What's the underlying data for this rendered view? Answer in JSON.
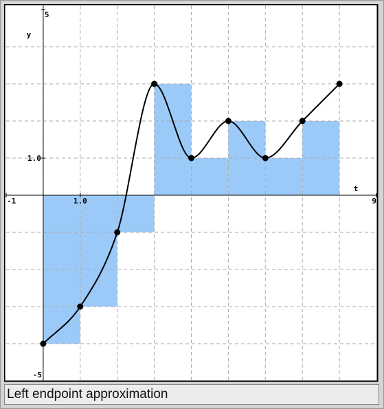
{
  "chart_data": {
    "type": "line",
    "x_label": "t",
    "y_label": "y",
    "x": [
      0,
      1,
      2,
      3,
      4,
      5,
      6,
      7,
      8
    ],
    "values": [
      -4,
      -3,
      -1,
      3,
      1,
      2,
      1,
      2,
      3
    ],
    "color": "#000000",
    "bar_color": "#9ccaf8",
    "xlim": [
      -1,
      9
    ],
    "ylim": [
      -5,
      5
    ],
    "xticks": [
      -1,
      {
        "value": 1,
        "label": "1.0"
      },
      9
    ],
    "yticks": [
      -5,
      {
        "value": 1,
        "label": "1.0"
      },
      5
    ],
    "xgrid": [
      0,
      1,
      2,
      3,
      4,
      5,
      6,
      7,
      8
    ],
    "ygrid": [
      -4,
      -3,
      -2,
      -1,
      0,
      1,
      2,
      3,
      4
    ],
    "caption": "Left endpoint approximation"
  }
}
